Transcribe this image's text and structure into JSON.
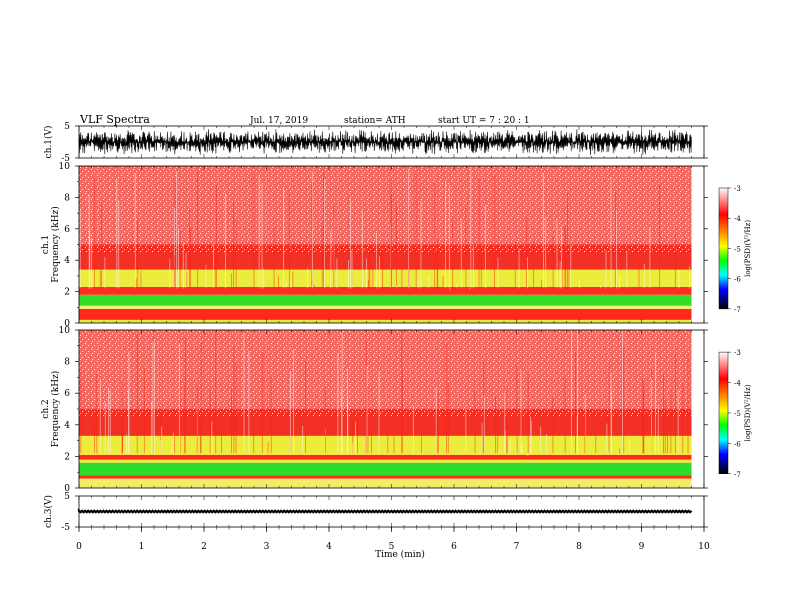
{
  "header": {
    "title": "VLF  Spectra",
    "date": "Jul.  17, 2019",
    "station": "station= ATH",
    "start": "start  UT  =   7  : 20 : 1"
  },
  "chart_data": [
    {
      "type": "line",
      "name": "ch1-waveform",
      "ylabel": "ch.1(V)",
      "yticks": [
        "5",
        "-5"
      ],
      "ylim": [
        -5,
        5
      ],
      "amplitude": 4.2
    },
    {
      "type": "heatmap",
      "name": "ch1-spectrogram",
      "ylabel": "ch.1\nFrequency  (kHz)",
      "ylim": [
        0,
        10
      ],
      "yticks": [
        "0",
        "2",
        "4",
        "6",
        "8",
        "10"
      ],
      "bands": [
        {
          "from": 0,
          "to": 0.2,
          "color": "#e8e84a"
        },
        {
          "from": 0.2,
          "to": 0.9,
          "color": "#ff2a1a"
        },
        {
          "from": 0.9,
          "to": 1.1,
          "color": "#f5f07a"
        },
        {
          "from": 1.1,
          "to": 1.8,
          "color": "#33dd2a"
        },
        {
          "from": 1.8,
          "to": 2.3,
          "color": "#ff2e20"
        },
        {
          "from": 2.3,
          "to": 3.4,
          "color": "#ecec3c"
        },
        {
          "from": 3.4,
          "to": 5.0,
          "color": "#f23025"
        },
        {
          "from": 5.0,
          "to": 10.0,
          "color": "#f36a63"
        }
      ],
      "colorbar": {
        "label": "log(PSD)(V²/Hz)",
        "ticks": [
          "-3",
          "-4",
          "-5",
          "-6",
          "-7"
        ]
      }
    },
    {
      "type": "heatmap",
      "name": "ch2-spectrogram",
      "ylabel": "ch.2\nFrequency  (kHz)",
      "ylim": [
        0,
        10
      ],
      "yticks": [
        "0",
        "2",
        "4",
        "6",
        "8",
        "10"
      ],
      "bands": [
        {
          "from": 0,
          "to": 0.6,
          "color": "#f3ec6a"
        },
        {
          "from": 0.6,
          "to": 0.8,
          "color": "#ff2a1a"
        },
        {
          "from": 0.8,
          "to": 1.6,
          "color": "#2fdc2b"
        },
        {
          "from": 1.6,
          "to": 1.8,
          "color": "#e9e83a"
        },
        {
          "from": 1.8,
          "to": 2.1,
          "color": "#ff2a1a"
        },
        {
          "from": 2.1,
          "to": 3.3,
          "color": "#ecec3c"
        },
        {
          "from": 3.3,
          "to": 5.0,
          "color": "#f23025"
        },
        {
          "from": 5.0,
          "to": 10.0,
          "color": "#f36a63"
        }
      ],
      "colorbar": {
        "label": "log(PSD)(V²/Hz)",
        "ticks": [
          "-3",
          "-4",
          "-5",
          "-6",
          "-7"
        ]
      }
    },
    {
      "type": "line",
      "name": "ch3-waveform",
      "ylabel": "ch.3(V)",
      "yticks": [
        "5",
        "-5"
      ],
      "ylim": [
        -5,
        5
      ],
      "amplitude": 0.3
    }
  ],
  "xaxis": {
    "label": "Time  (min)",
    "ticks": [
      "0",
      "1",
      "2",
      "3",
      "4",
      "5",
      "6",
      "7",
      "8",
      "9",
      "10"
    ],
    "xlim": [
      0,
      10
    ],
    "data_end": 9.8
  }
}
